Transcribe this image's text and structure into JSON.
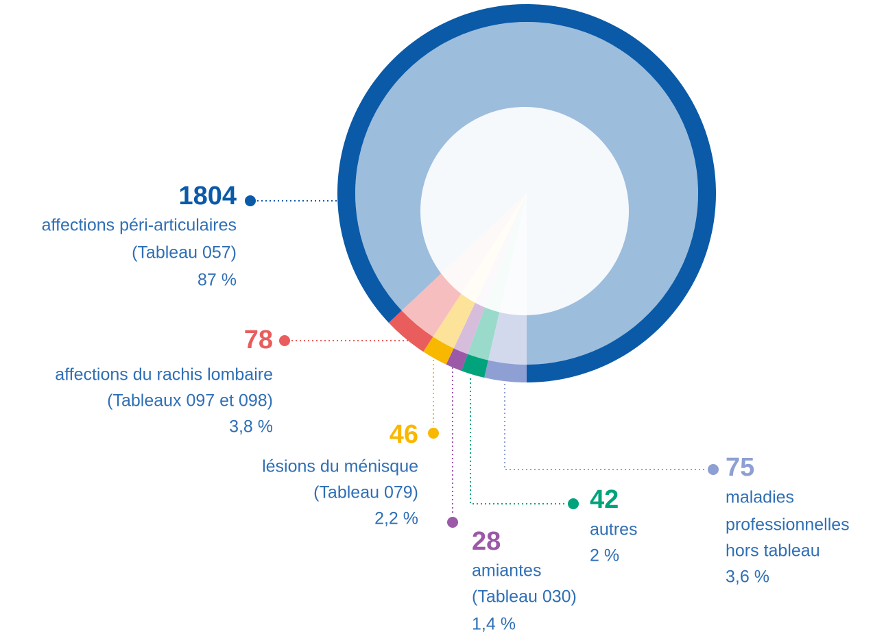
{
  "chart_data": {
    "type": "pie",
    "series": [
      {
        "name": [
          "maladies",
          "professionnelles",
          "hors tableau"
        ],
        "color": "#8e9fd3",
        "count": 75,
        "percent": 3.6,
        "percent_label": "3,6 %"
      },
      {
        "name": [
          "autres"
        ],
        "color": "#00a37c",
        "count": 42,
        "percent": 2,
        "percent_label": "2 %"
      },
      {
        "name": [
          "amiantes",
          "(Tableau 030)"
        ],
        "color": "#9b59a8",
        "count": 28,
        "percent": 1.4,
        "percent_label": "1,4 %"
      },
      {
        "name": [
          "lésions du ménisque",
          "(Tableau 079)"
        ],
        "color": "#f9b800",
        "count": 46,
        "percent": 2.2,
        "percent_label": "2,2 %"
      },
      {
        "name": [
          "affections du rachis lombaire",
          "(Tableaux 097 et 098)"
        ],
        "color": "#e95d5d",
        "count": 78,
        "percent": 3.8,
        "percent_label": "3,8 %"
      },
      {
        "name": [
          "affections péri-articulaires",
          "(Tableau 057)"
        ],
        "color": "#0a5aa8",
        "count": 1804,
        "percent": 87,
        "percent_label": "87 %"
      }
    ]
  }
}
